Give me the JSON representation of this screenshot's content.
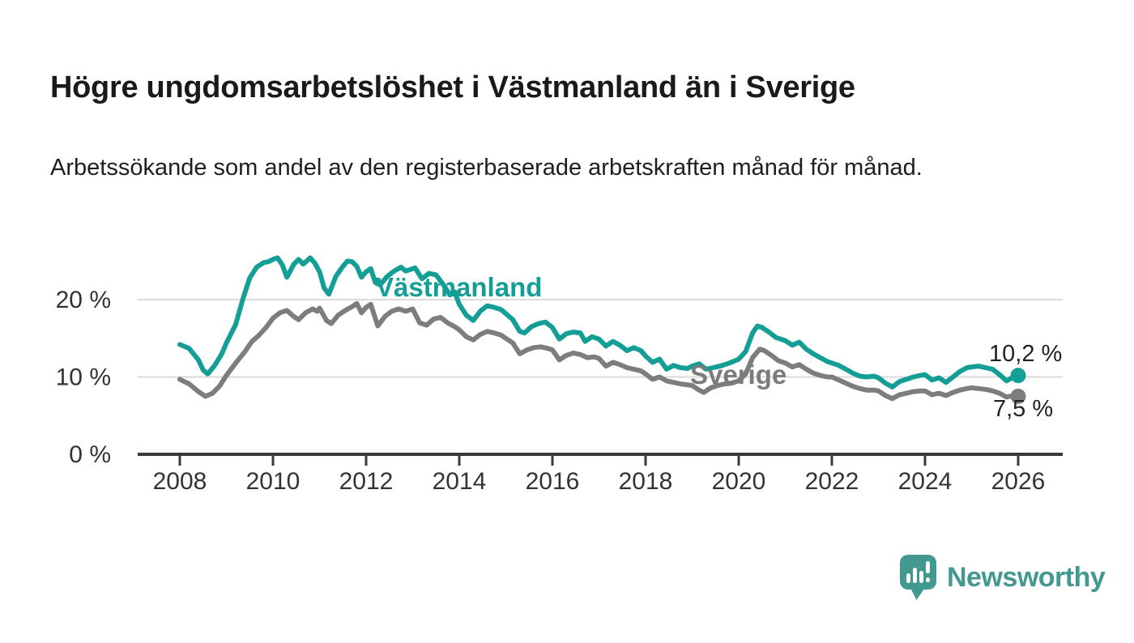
{
  "title": "Högre ungdomsarbetslöshet i Västmanland än i Sverige",
  "subtitle": "Arbetssökande som andel av den registerbaserade arbetskraften månad för månad.",
  "colors": {
    "line_vastmanland": "#149e96",
    "line_sverige": "#7d7d7d",
    "gridline": "#dadada",
    "axis_line": "#3a3a3a",
    "axis_text": "#333333",
    "value_label": "#222222",
    "brand_teal": "#42998f"
  },
  "branding": {
    "logo_text": "Newsworthy"
  },
  "chart_data": {
    "type": "line",
    "x_unit": "year (monthly series)",
    "ylabel": "",
    "xlabel": "",
    "ylim": [
      0,
      27
    ],
    "xlim": [
      2007.5,
      2027
    ],
    "grid": "horizontal",
    "yticks": [
      {
        "value": 0,
        "label": "0 %"
      },
      {
        "value": 10,
        "label": "10 %"
      },
      {
        "value": 20,
        "label": "20 %"
      }
    ],
    "xticks": [
      2008,
      2010,
      2012,
      2014,
      2016,
      2018,
      2020,
      2022,
      2024,
      2026
    ],
    "series": [
      {
        "name": "Västmanland",
        "color": "#149e96",
        "end_label": "10,2 %",
        "end_value": 10.2,
        "points": [
          [
            2008.0,
            14.2
          ],
          [
            2008.2,
            13.7
          ],
          [
            2008.4,
            12.2
          ],
          [
            2008.5,
            10.9
          ],
          [
            2008.6,
            10.4
          ],
          [
            2008.75,
            11.5
          ],
          [
            2008.9,
            13.0
          ],
          [
            2009.0,
            14.4
          ],
          [
            2009.2,
            16.8
          ],
          [
            2009.35,
            20.0
          ],
          [
            2009.5,
            22.8
          ],
          [
            2009.65,
            24.2
          ],
          [
            2009.8,
            24.8
          ],
          [
            2009.9,
            24.9
          ],
          [
            2010.0,
            25.2
          ],
          [
            2010.1,
            25.4
          ],
          [
            2010.2,
            24.5
          ],
          [
            2010.3,
            22.9
          ],
          [
            2010.45,
            24.6
          ],
          [
            2010.55,
            25.2
          ],
          [
            2010.65,
            24.6
          ],
          [
            2010.8,
            25.4
          ],
          [
            2010.9,
            24.7
          ],
          [
            2011.0,
            23.6
          ],
          [
            2011.1,
            21.5
          ],
          [
            2011.2,
            20.7
          ],
          [
            2011.35,
            23.0
          ],
          [
            2011.5,
            24.3
          ],
          [
            2011.6,
            25.0
          ],
          [
            2011.7,
            24.9
          ],
          [
            2011.8,
            24.3
          ],
          [
            2011.9,
            22.9
          ],
          [
            2012.0,
            23.6
          ],
          [
            2012.1,
            24.0
          ],
          [
            2012.2,
            22.2
          ],
          [
            2012.3,
            21.9
          ],
          [
            2012.45,
            23.0
          ],
          [
            2012.6,
            23.7
          ],
          [
            2012.75,
            24.2
          ],
          [
            2012.85,
            23.7
          ],
          [
            2012.95,
            23.9
          ],
          [
            2013.05,
            24.1
          ],
          [
            2013.2,
            22.7
          ],
          [
            2013.35,
            23.4
          ],
          [
            2013.5,
            23.2
          ],
          [
            2013.65,
            22.0
          ],
          [
            2013.8,
            20.6
          ],
          [
            2013.9,
            21.0
          ],
          [
            2014.0,
            19.4
          ],
          [
            2014.15,
            18.0
          ],
          [
            2014.3,
            17.3
          ],
          [
            2014.45,
            18.5
          ],
          [
            2014.6,
            19.2
          ],
          [
            2014.75,
            19.0
          ],
          [
            2014.9,
            18.7
          ],
          [
            2015.0,
            18.2
          ],
          [
            2015.15,
            17.4
          ],
          [
            2015.3,
            15.9
          ],
          [
            2015.4,
            15.7
          ],
          [
            2015.55,
            16.5
          ],
          [
            2015.7,
            16.9
          ],
          [
            2015.85,
            17.1
          ],
          [
            2016.0,
            16.4
          ],
          [
            2016.15,
            14.9
          ],
          [
            2016.3,
            15.6
          ],
          [
            2016.45,
            15.8
          ],
          [
            2016.6,
            15.7
          ],
          [
            2016.7,
            14.6
          ],
          [
            2016.85,
            15.2
          ],
          [
            2017.0,
            14.9
          ],
          [
            2017.15,
            14.0
          ],
          [
            2017.3,
            14.6
          ],
          [
            2017.45,
            14.1
          ],
          [
            2017.6,
            13.4
          ],
          [
            2017.75,
            13.8
          ],
          [
            2017.9,
            13.4
          ],
          [
            2018.0,
            12.7
          ],
          [
            2018.15,
            11.9
          ],
          [
            2018.3,
            12.3
          ],
          [
            2018.45,
            11.0
          ],
          [
            2018.6,
            11.5
          ],
          [
            2018.75,
            11.2
          ],
          [
            2018.9,
            11.1
          ],
          [
            2019.0,
            11.4
          ],
          [
            2019.15,
            11.7
          ],
          [
            2019.3,
            11.0
          ],
          [
            2019.45,
            11.2
          ],
          [
            2019.6,
            11.4
          ],
          [
            2019.8,
            11.8
          ],
          [
            2020.0,
            12.3
          ],
          [
            2020.15,
            13.3
          ],
          [
            2020.3,
            15.7
          ],
          [
            2020.4,
            16.6
          ],
          [
            2020.5,
            16.4
          ],
          [
            2020.65,
            15.8
          ],
          [
            2020.8,
            15.1
          ],
          [
            2020.9,
            14.9
          ],
          [
            2021.0,
            14.7
          ],
          [
            2021.15,
            14.1
          ],
          [
            2021.3,
            14.5
          ],
          [
            2021.45,
            13.6
          ],
          [
            2021.6,
            13.0
          ],
          [
            2021.75,
            12.5
          ],
          [
            2021.9,
            12.0
          ],
          [
            2022.0,
            11.8
          ],
          [
            2022.15,
            11.5
          ],
          [
            2022.3,
            11.0
          ],
          [
            2022.45,
            10.5
          ],
          [
            2022.6,
            10.1
          ],
          [
            2022.75,
            10.0
          ],
          [
            2022.9,
            10.1
          ],
          [
            2023.0,
            9.9
          ],
          [
            2023.15,
            9.2
          ],
          [
            2023.3,
            8.7
          ],
          [
            2023.45,
            9.4
          ],
          [
            2023.6,
            9.7
          ],
          [
            2023.75,
            10.0
          ],
          [
            2023.9,
            10.2
          ],
          [
            2024.0,
            10.3
          ],
          [
            2024.15,
            9.6
          ],
          [
            2024.3,
            9.9
          ],
          [
            2024.45,
            9.3
          ],
          [
            2024.6,
            10.0
          ],
          [
            2024.75,
            10.7
          ],
          [
            2024.9,
            11.2
          ],
          [
            2025.0,
            11.3
          ],
          [
            2025.15,
            11.4
          ],
          [
            2025.3,
            11.2
          ],
          [
            2025.45,
            11.0
          ],
          [
            2025.6,
            10.3
          ],
          [
            2025.75,
            9.5
          ],
          [
            2025.9,
            10.0
          ],
          [
            2026.0,
            10.2
          ]
        ]
      },
      {
        "name": "Sverige",
        "color": "#7d7d7d",
        "end_label": "7,5 %",
        "end_value": 7.5,
        "points": [
          [
            2008.0,
            9.7
          ],
          [
            2008.2,
            9.1
          ],
          [
            2008.4,
            8.1
          ],
          [
            2008.55,
            7.5
          ],
          [
            2008.7,
            7.9
          ],
          [
            2008.85,
            8.8
          ],
          [
            2009.0,
            10.2
          ],
          [
            2009.2,
            11.8
          ],
          [
            2009.4,
            13.3
          ],
          [
            2009.55,
            14.6
          ],
          [
            2009.7,
            15.4
          ],
          [
            2009.85,
            16.4
          ],
          [
            2010.0,
            17.6
          ],
          [
            2010.15,
            18.3
          ],
          [
            2010.3,
            18.6
          ],
          [
            2010.45,
            17.8
          ],
          [
            2010.55,
            17.4
          ],
          [
            2010.7,
            18.3
          ],
          [
            2010.85,
            18.8
          ],
          [
            2010.95,
            18.5
          ],
          [
            2011.0,
            18.9
          ],
          [
            2011.15,
            17.3
          ],
          [
            2011.25,
            16.9
          ],
          [
            2011.4,
            18.0
          ],
          [
            2011.55,
            18.6
          ],
          [
            2011.7,
            19.1
          ],
          [
            2011.8,
            19.5
          ],
          [
            2011.9,
            18.3
          ],
          [
            2012.0,
            19.0
          ],
          [
            2012.1,
            19.4
          ],
          [
            2012.25,
            16.6
          ],
          [
            2012.4,
            17.8
          ],
          [
            2012.55,
            18.5
          ],
          [
            2012.7,
            18.8
          ],
          [
            2012.85,
            18.5
          ],
          [
            2013.0,
            18.8
          ],
          [
            2013.15,
            17.0
          ],
          [
            2013.3,
            16.7
          ],
          [
            2013.45,
            17.5
          ],
          [
            2013.6,
            17.7
          ],
          [
            2013.75,
            17.0
          ],
          [
            2013.9,
            16.5
          ],
          [
            2014.0,
            16.1
          ],
          [
            2014.15,
            15.2
          ],
          [
            2014.3,
            14.8
          ],
          [
            2014.45,
            15.5
          ],
          [
            2014.6,
            15.9
          ],
          [
            2014.75,
            15.7
          ],
          [
            2014.9,
            15.4
          ],
          [
            2015.0,
            15.0
          ],
          [
            2015.15,
            14.4
          ],
          [
            2015.3,
            13.0
          ],
          [
            2015.45,
            13.5
          ],
          [
            2015.6,
            13.8
          ],
          [
            2015.75,
            13.9
          ],
          [
            2015.9,
            13.7
          ],
          [
            2016.0,
            13.5
          ],
          [
            2016.15,
            12.2
          ],
          [
            2016.3,
            12.8
          ],
          [
            2016.45,
            13.1
          ],
          [
            2016.6,
            12.9
          ],
          [
            2016.75,
            12.5
          ],
          [
            2016.9,
            12.6
          ],
          [
            2017.0,
            12.4
          ],
          [
            2017.15,
            11.4
          ],
          [
            2017.3,
            11.9
          ],
          [
            2017.45,
            11.6
          ],
          [
            2017.6,
            11.2
          ],
          [
            2017.75,
            11.0
          ],
          [
            2017.9,
            10.8
          ],
          [
            2018.0,
            10.4
          ],
          [
            2018.15,
            9.7
          ],
          [
            2018.3,
            10.0
          ],
          [
            2018.45,
            9.5
          ],
          [
            2018.6,
            9.3
          ],
          [
            2018.75,
            9.1
          ],
          [
            2018.9,
            9.0
          ],
          [
            2019.0,
            8.9
          ],
          [
            2019.15,
            8.3
          ],
          [
            2019.25,
            8.0
          ],
          [
            2019.4,
            8.6
          ],
          [
            2019.55,
            8.9
          ],
          [
            2019.7,
            9.1
          ],
          [
            2019.85,
            9.2
          ],
          [
            2020.0,
            9.5
          ],
          [
            2020.15,
            10.4
          ],
          [
            2020.3,
            12.5
          ],
          [
            2020.45,
            13.6
          ],
          [
            2020.55,
            13.4
          ],
          [
            2020.7,
            12.8
          ],
          [
            2020.85,
            12.1
          ],
          [
            2021.0,
            11.8
          ],
          [
            2021.15,
            11.3
          ],
          [
            2021.3,
            11.6
          ],
          [
            2021.45,
            11.0
          ],
          [
            2021.6,
            10.5
          ],
          [
            2021.75,
            10.2
          ],
          [
            2021.9,
            10.0
          ],
          [
            2022.0,
            10.0
          ],
          [
            2022.15,
            9.6
          ],
          [
            2022.3,
            9.2
          ],
          [
            2022.45,
            8.8
          ],
          [
            2022.6,
            8.5
          ],
          [
            2022.75,
            8.3
          ],
          [
            2022.9,
            8.3
          ],
          [
            2023.0,
            8.2
          ],
          [
            2023.15,
            7.6
          ],
          [
            2023.3,
            7.2
          ],
          [
            2023.45,
            7.7
          ],
          [
            2023.6,
            7.9
          ],
          [
            2023.75,
            8.1
          ],
          [
            2023.9,
            8.2
          ],
          [
            2024.0,
            8.2
          ],
          [
            2024.15,
            7.7
          ],
          [
            2024.3,
            7.9
          ],
          [
            2024.45,
            7.6
          ],
          [
            2024.6,
            8.0
          ],
          [
            2024.75,
            8.3
          ],
          [
            2024.9,
            8.5
          ],
          [
            2025.0,
            8.6
          ],
          [
            2025.15,
            8.5
          ],
          [
            2025.3,
            8.4
          ],
          [
            2025.45,
            8.2
          ],
          [
            2025.6,
            7.9
          ],
          [
            2025.75,
            7.4
          ],
          [
            2025.9,
            7.6
          ],
          [
            2026.0,
            7.5
          ]
        ]
      }
    ]
  }
}
